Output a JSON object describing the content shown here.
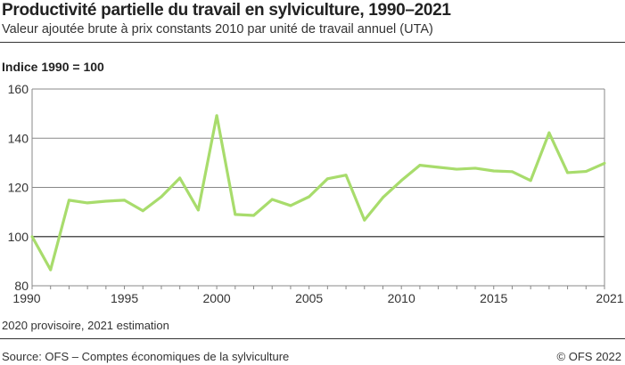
{
  "header": {
    "title": "Productivité partielle du travail en sylviculture, 1990–2021",
    "subtitle": "Valeur ajoutée brute à prix constants 2010 par unité de travail annuel (UTA)"
  },
  "footer": {
    "note": "2020 provisoire, 2021 estimation",
    "source": "Source: OFS – Comptes économiques de la sylviculture",
    "copyright": "© OFS 2022"
  },
  "chart_data": {
    "type": "line",
    "title": "Productivité partielle du travail en sylviculture, 1990–2021",
    "ylabel": "Indice 1990 = 100",
    "xlim": [
      1990,
      2021
    ],
    "ylim": [
      80,
      160
    ],
    "yticks": [
      80,
      100,
      120,
      140,
      160
    ],
    "xticks": [
      1990,
      1995,
      2000,
      2005,
      2010,
      2015,
      2021
    ],
    "grid": true,
    "color": "#a8dc6c",
    "x": [
      1990,
      1991,
      1992,
      1993,
      1994,
      1995,
      1996,
      1997,
      1998,
      1999,
      2000,
      2001,
      2002,
      2003,
      2004,
      2005,
      2006,
      2007,
      2008,
      2009,
      2010,
      2011,
      2012,
      2013,
      2014,
      2015,
      2016,
      2017,
      2018,
      2019,
      2020,
      2021
    ],
    "y": [
      100,
      86.5,
      114.8,
      113.7,
      114.4,
      114.8,
      110.5,
      116.2,
      123.8,
      110.8,
      149.2,
      109,
      108.6,
      115.1,
      112.6,
      116.2,
      123.5,
      125,
      106.7,
      115.9,
      122.8,
      129,
      128.2,
      127.4,
      127.8,
      126.7,
      126.4,
      122.8,
      142.2,
      126,
      126.5,
      129.8
    ]
  }
}
